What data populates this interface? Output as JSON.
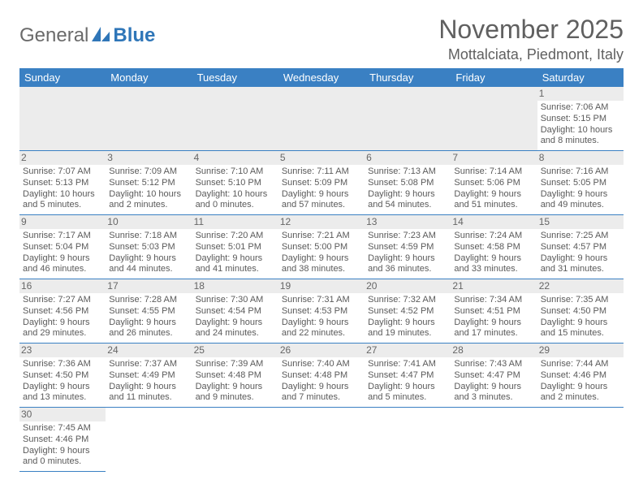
{
  "logo": {
    "text1": "General",
    "text2": "Blue"
  },
  "title": "November 2025",
  "location": "Mottalciata, Piedmont, Italy",
  "colors": {
    "header_bg": "#3a80c3",
    "header_text": "#ffffff",
    "cell_divider": "#3a80c3",
    "daynum_bg": "#ececec",
    "body_text": "#5a5a5a",
    "page_bg": "#ffffff"
  },
  "font": {
    "family": "Arial",
    "cell_size_pt": 8,
    "header_size_pt": 10,
    "title_size_pt": 24,
    "location_size_pt": 14
  },
  "weekdays": [
    "Sunday",
    "Monday",
    "Tuesday",
    "Wednesday",
    "Thursday",
    "Friday",
    "Saturday"
  ],
  "layout": {
    "columns": 7,
    "rows": 6,
    "first_weekday_index": 6
  },
  "days": {
    "1": {
      "sunrise": "7:06 AM",
      "sunset": "5:15 PM",
      "daylight": "10 hours and 8 minutes."
    },
    "2": {
      "sunrise": "7:07 AM",
      "sunset": "5:13 PM",
      "daylight": "10 hours and 5 minutes."
    },
    "3": {
      "sunrise": "7:09 AM",
      "sunset": "5:12 PM",
      "daylight": "10 hours and 2 minutes."
    },
    "4": {
      "sunrise": "7:10 AM",
      "sunset": "5:10 PM",
      "daylight": "10 hours and 0 minutes."
    },
    "5": {
      "sunrise": "7:11 AM",
      "sunset": "5:09 PM",
      "daylight": "9 hours and 57 minutes."
    },
    "6": {
      "sunrise": "7:13 AM",
      "sunset": "5:08 PM",
      "daylight": "9 hours and 54 minutes."
    },
    "7": {
      "sunrise": "7:14 AM",
      "sunset": "5:06 PM",
      "daylight": "9 hours and 51 minutes."
    },
    "8": {
      "sunrise": "7:16 AM",
      "sunset": "5:05 PM",
      "daylight": "9 hours and 49 minutes."
    },
    "9": {
      "sunrise": "7:17 AM",
      "sunset": "5:04 PM",
      "daylight": "9 hours and 46 minutes."
    },
    "10": {
      "sunrise": "7:18 AM",
      "sunset": "5:03 PM",
      "daylight": "9 hours and 44 minutes."
    },
    "11": {
      "sunrise": "7:20 AM",
      "sunset": "5:01 PM",
      "daylight": "9 hours and 41 minutes."
    },
    "12": {
      "sunrise": "7:21 AM",
      "sunset": "5:00 PM",
      "daylight": "9 hours and 38 minutes."
    },
    "13": {
      "sunrise": "7:23 AM",
      "sunset": "4:59 PM",
      "daylight": "9 hours and 36 minutes."
    },
    "14": {
      "sunrise": "7:24 AM",
      "sunset": "4:58 PM",
      "daylight": "9 hours and 33 minutes."
    },
    "15": {
      "sunrise": "7:25 AM",
      "sunset": "4:57 PM",
      "daylight": "9 hours and 31 minutes."
    },
    "16": {
      "sunrise": "7:27 AM",
      "sunset": "4:56 PM",
      "daylight": "9 hours and 29 minutes."
    },
    "17": {
      "sunrise": "7:28 AM",
      "sunset": "4:55 PM",
      "daylight": "9 hours and 26 minutes."
    },
    "18": {
      "sunrise": "7:30 AM",
      "sunset": "4:54 PM",
      "daylight": "9 hours and 24 minutes."
    },
    "19": {
      "sunrise": "7:31 AM",
      "sunset": "4:53 PM",
      "daylight": "9 hours and 22 minutes."
    },
    "20": {
      "sunrise": "7:32 AM",
      "sunset": "4:52 PM",
      "daylight": "9 hours and 19 minutes."
    },
    "21": {
      "sunrise": "7:34 AM",
      "sunset": "4:51 PM",
      "daylight": "9 hours and 17 minutes."
    },
    "22": {
      "sunrise": "7:35 AM",
      "sunset": "4:50 PM",
      "daylight": "9 hours and 15 minutes."
    },
    "23": {
      "sunrise": "7:36 AM",
      "sunset": "4:50 PM",
      "daylight": "9 hours and 13 minutes."
    },
    "24": {
      "sunrise": "7:37 AM",
      "sunset": "4:49 PM",
      "daylight": "9 hours and 11 minutes."
    },
    "25": {
      "sunrise": "7:39 AM",
      "sunset": "4:48 PM",
      "daylight": "9 hours and 9 minutes."
    },
    "26": {
      "sunrise": "7:40 AM",
      "sunset": "4:48 PM",
      "daylight": "9 hours and 7 minutes."
    },
    "27": {
      "sunrise": "7:41 AM",
      "sunset": "4:47 PM",
      "daylight": "9 hours and 5 minutes."
    },
    "28": {
      "sunrise": "7:43 AM",
      "sunset": "4:47 PM",
      "daylight": "9 hours and 3 minutes."
    },
    "29": {
      "sunrise": "7:44 AM",
      "sunset": "4:46 PM",
      "daylight": "9 hours and 2 minutes."
    },
    "30": {
      "sunrise": "7:45 AM",
      "sunset": "4:46 PM",
      "daylight": "9 hours and 0 minutes."
    }
  },
  "labels": {
    "sunrise": "Sunrise:",
    "sunset": "Sunset:",
    "daylight": "Daylight:"
  }
}
